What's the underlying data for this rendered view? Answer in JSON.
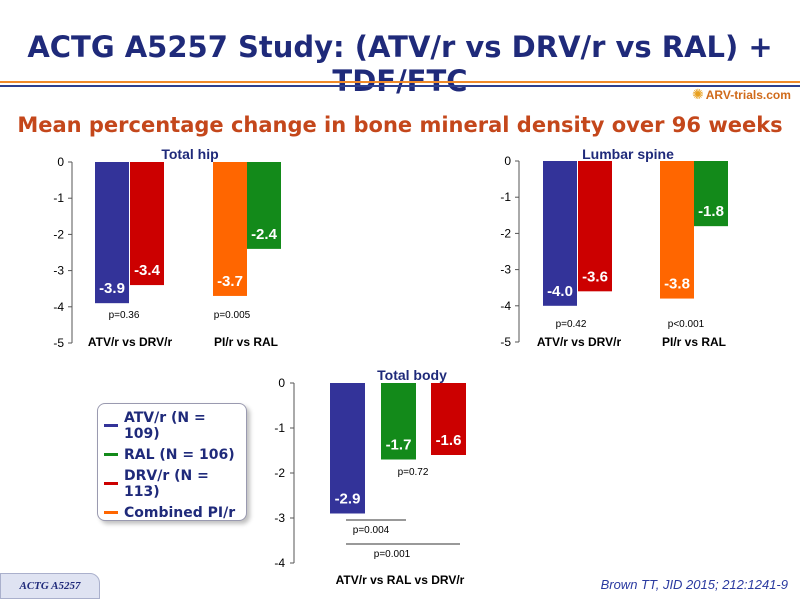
{
  "slide": {
    "title": "ACTG A5257 Study: (ATV/r vs DRV/r vs RAL) + TDF/FTC",
    "subtitle": "Mean percentage change in bone mineral density over 96 weeks",
    "logo_text": "ARV-trials.com",
    "footer_tag": "ACTG A5257",
    "citation": "Brown TT, JID 2015; 212:1241-9"
  },
  "colors": {
    "title": "#1f2a7a",
    "subtitle": "#c4471b",
    "ATV/r": "#333399",
    "RAL": "#138a1a",
    "DRV/r": "#cc0000",
    "Combined PI/r": "#ff6600",
    "rule_orange": "#f08a2a",
    "rule_blue": "#2d3f8f"
  },
  "legend": [
    {
      "label": "ATV/r (N = 109)",
      "group": "ATV/r"
    },
    {
      "label": "RAL (N = 106)",
      "group": "RAL"
    },
    {
      "label": "DRV/r (N = 113)",
      "group": "DRV/r"
    },
    {
      "label": "Combined PI/r",
      "group": "Combined PI/r"
    }
  ],
  "chart_data": [
    {
      "type": "bar",
      "title": "Total hip",
      "ylim": [
        -5,
        0
      ],
      "yticks": [
        "0",
        "-1",
        "-2",
        "-3",
        "-4",
        "-5"
      ],
      "categories": [
        "ATV/r vs DRV/r",
        "PI/r vs RAL"
      ],
      "bars": [
        {
          "category": 0,
          "group": "ATV/r",
          "value": -3.9,
          "label": "-3.9"
        },
        {
          "category": 0,
          "group": "DRV/r",
          "value": -3.4,
          "label": "-3.4"
        },
        {
          "category": 1,
          "group": "Combined PI/r",
          "value": -3.7,
          "label": "-3.7"
        },
        {
          "category": 1,
          "group": "RAL",
          "value": -2.4,
          "label": "-2.4"
        }
      ],
      "pvalues": [
        {
          "category": 0,
          "text": "p=0.36"
        },
        {
          "category": 1,
          "text": "p=0.005"
        }
      ]
    },
    {
      "type": "bar",
      "title": "Lumbar spine",
      "ylim": [
        -5,
        0
      ],
      "yticks": [
        "0",
        "-1",
        "-2",
        "-3",
        "-4",
        "-5"
      ],
      "categories": [
        "ATV/r vs DRV/r",
        "PI/r vs RAL"
      ],
      "bars": [
        {
          "category": 0,
          "group": "ATV/r",
          "value": -4.0,
          "label": "-4.0"
        },
        {
          "category": 0,
          "group": "DRV/r",
          "value": -3.6,
          "label": "-3.6"
        },
        {
          "category": 1,
          "group": "Combined PI/r",
          "value": -3.8,
          "label": "-3.8"
        },
        {
          "category": 1,
          "group": "RAL",
          "value": -1.8,
          "label": "-1.8"
        }
      ],
      "pvalues": [
        {
          "category": 0,
          "text": "p=0.42"
        },
        {
          "category": 1,
          "text": "p<0.001"
        }
      ]
    },
    {
      "type": "bar",
      "title": "Total body",
      "ylim": [
        -4,
        0
      ],
      "yticks": [
        "0",
        "-1",
        "-2",
        "-3",
        "-4"
      ],
      "categories": [
        "ATV/r vs RAL vs DRV/r"
      ],
      "bars": [
        {
          "category": 0,
          "group": "ATV/r",
          "value": -2.9,
          "label": "-2.9"
        },
        {
          "category": 0,
          "group": "RAL",
          "value": -1.7,
          "label": "-1.7"
        },
        {
          "category": 0,
          "group": "DRV/r",
          "value": -1.6,
          "label": "-1.6"
        }
      ],
      "pvalues": [
        {
          "text": "p=0.72",
          "between": [
            "RAL",
            "DRV/r"
          ]
        },
        {
          "text": "p=0.004",
          "between": [
            "ATV/r",
            "RAL"
          ]
        },
        {
          "text": "p=0.001",
          "between": [
            "ATV/r",
            "DRV/r"
          ]
        }
      ]
    }
  ]
}
